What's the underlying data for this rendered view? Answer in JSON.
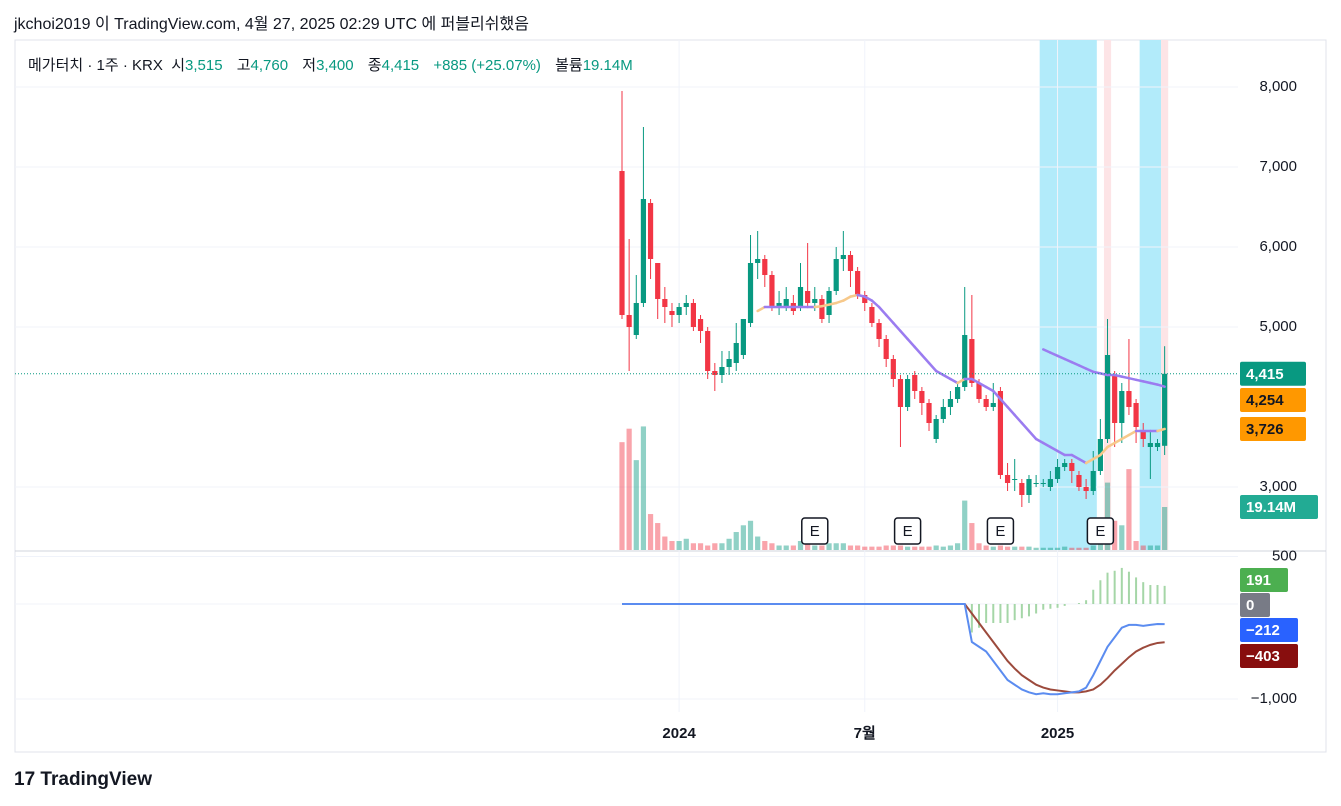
{
  "header": "jkchoi2019 이 TradingView.com, 4월 27, 2025 02:29 UTC 에 퍼블리쉬했음",
  "legend": {
    "symbol": "메가터치 · 1주 · KRX",
    "open_label": "시",
    "open": "3,515",
    "high_label": "고",
    "high": "4,760",
    "low_label": "저",
    "low": "3,400",
    "close_label": "종",
    "close": "4,415",
    "change": "+885 (+25.07%)",
    "volume_label": "볼륨",
    "volume": "19.14M"
  },
  "logo": "TradingView",
  "chart_data": {
    "type": "candlestick",
    "up_color": "#089981",
    "down_color": "#f23645",
    "open": [
      6950,
      5150,
      4900,
      5300,
      6550,
      5800,
      5350,
      5200,
      5150,
      5250,
      5300,
      5100,
      4950,
      4450,
      4400,
      4500,
      4550,
      4650,
      5050,
      5800,
      5850,
      5650,
      5250,
      5250,
      5300,
      5250,
      5450,
      5300,
      5350,
      5150,
      5450,
      5850,
      5900,
      5700,
      5400,
      5250,
      5050,
      4850,
      4600,
      4350,
      4000,
      4400,
      4200,
      4050,
      3600,
      3850,
      4000,
      4100,
      4250,
      4850,
      4300,
      4100,
      4000,
      4200,
      3150,
      3100,
      3050,
      2900,
      3050,
      3050,
      3000,
      3100,
      3250,
      3300,
      3150,
      3000,
      2950,
      3200,
      3600,
      4400,
      3800,
      4200,
      4050,
      3700,
      3500,
      3500,
      3515
    ],
    "high": [
      7950,
      6100,
      5650,
      7500,
      6600,
      5800,
      5500,
      5300,
      5300,
      5400,
      5350,
      5150,
      5000,
      4550,
      4700,
      4700,
      5050,
      5100,
      6150,
      6200,
      5900,
      5700,
      5450,
      5500,
      5400,
      5800,
      6050,
      5500,
      5400,
      5500,
      6000,
      6200,
      5950,
      5750,
      5450,
      5300,
      5100,
      4900,
      4650,
      4400,
      4400,
      4450,
      4250,
      4100,
      3900,
      4100,
      4200,
      4300,
      5500,
      5400,
      4350,
      4150,
      4300,
      4250,
      3300,
      3350,
      3100,
      3150,
      3150,
      3100,
      3200,
      3350,
      3350,
      3350,
      3200,
      3100,
      3450,
      3850,
      5100,
      4450,
      4300,
      4850,
      4100,
      3800,
      3700,
      3600,
      4760
    ],
    "low": [
      5100,
      4450,
      4850,
      5250,
      5600,
      5100,
      5050,
      5000,
      5050,
      5150,
      4950,
      4800,
      4350,
      4200,
      4300,
      4400,
      4450,
      4600,
      5000,
      5600,
      5500,
      5200,
      5150,
      5200,
      5150,
      5200,
      5250,
      5200,
      5050,
      5050,
      5400,
      5700,
      5500,
      5350,
      5200,
      5000,
      4750,
      4500,
      4250,
      3500,
      3950,
      4100,
      3900,
      3700,
      3550,
      3800,
      3900,
      4050,
      4200,
      4250,
      4050,
      3950,
      3950,
      3100,
      2950,
      2950,
      2750,
      2800,
      3000,
      3000,
      2950,
      3050,
      3200,
      3050,
      2950,
      2850,
      2900,
      3150,
      3550,
      3500,
      3550,
      3900,
      3550,
      3500,
      3100,
      3450,
      3400
    ],
    "close": [
      5150,
      5000,
      5300,
      6600,
      5850,
      5350,
      5250,
      5150,
      5250,
      5300,
      5000,
      4950,
      4450,
      4400,
      4500,
      4600,
      4800,
      5100,
      5800,
      5850,
      5650,
      5250,
      5300,
      5350,
      5200,
      5500,
      5300,
      5350,
      5100,
      5450,
      5850,
      5900,
      5700,
      5400,
      5300,
      5050,
      4850,
      4600,
      4350,
      4000,
      4350,
      4200,
      4050,
      3800,
      3850,
      4000,
      4100,
      4250,
      4900,
      4300,
      4100,
      4000,
      4050,
      3150,
      3050,
      3100,
      2900,
      3100,
      3050,
      3050,
      3100,
      3250,
      3300,
      3200,
      3000,
      2950,
      3200,
      3600,
      4650,
      3800,
      4200,
      4000,
      3750,
      3600,
      3550,
      3550,
      4415
    ],
    "volume": [
      48,
      54,
      40,
      55,
      16,
      12,
      6,
      4,
      4,
      5,
      3,
      3,
      2,
      3,
      3,
      5,
      8,
      11,
      13,
      6,
      4,
      3,
      2,
      2,
      2,
      4,
      3,
      2,
      2,
      3,
      3,
      3,
      2,
      2,
      1.5,
      1.5,
      1.5,
      2,
      2,
      2,
      1.5,
      1.5,
      1.5,
      1.5,
      2,
      1.5,
      2,
      3,
      22,
      12,
      3,
      2,
      1.5,
      2,
      1.5,
      1.5,
      1.5,
      1.5,
      1,
      1,
      1,
      1,
      1.5,
      1,
      1,
      1,
      2,
      8,
      30,
      13,
      11,
      36,
      4,
      2,
      2,
      2,
      19.14
    ],
    "volume_ylim": [
      0,
      227
    ],
    "ylim": [
      2212.5,
      8587.5
    ],
    "yticks": [
      {
        "value": 8000,
        "label": "8,000"
      },
      {
        "value": 7000,
        "label": "7,000"
      },
      {
        "value": 6000,
        "label": "6,000"
      },
      {
        "value": 5000,
        "label": "5,000"
      },
      {
        "value": 3000,
        "label": "3,000"
      }
    ],
    "xticks": [
      {
        "value": 8,
        "label": "2024"
      },
      {
        "value": 34,
        "label": "7월"
      },
      {
        "value": 61,
        "label": "2025"
      }
    ],
    "last_price": 4415,
    "last_price_label": "4,415",
    "last_volume_label": "19.14M",
    "moving_averages": [
      {
        "color": "#9b7cf0",
        "rising_color": "#f7c98b",
        "last_label": "3,726",
        "values": [
          null,
          null,
          null,
          null,
          null,
          null,
          null,
          null,
          null,
          null,
          null,
          null,
          null,
          null,
          null,
          null,
          null,
          null,
          null,
          5200,
          5250,
          5250,
          5250,
          5250,
          5250,
          5250,
          5250,
          5250,
          5260,
          5280,
          5300,
          5330,
          5380,
          5400,
          5380,
          5330,
          5250,
          5150,
          5050,
          4950,
          4850,
          4750,
          4650,
          4550,
          4450,
          4400,
          4350,
          4300,
          4350,
          4350,
          4300,
          4250,
          4200,
          4100,
          4000,
          3900,
          3800,
          3700,
          3600,
          3550,
          3500,
          3450,
          3400,
          3400,
          3350,
          3300,
          3350,
          3400,
          3500,
          3550,
          3600,
          3650,
          3700,
          3700,
          3700,
          3700,
          3726
        ]
      },
      {
        "color": "#9b7cf0",
        "rising_color": "#9b7cf0",
        "last_label": "4,254",
        "values": [
          null,
          null,
          null,
          null,
          null,
          null,
          null,
          null,
          null,
          null,
          null,
          null,
          null,
          null,
          null,
          null,
          null,
          null,
          null,
          null,
          null,
          null,
          null,
          null,
          null,
          null,
          null,
          null,
          null,
          null,
          null,
          null,
          null,
          null,
          null,
          null,
          null,
          null,
          null,
          null,
          null,
          null,
          null,
          null,
          null,
          null,
          null,
          null,
          null,
          null,
          null,
          null,
          null,
          null,
          null,
          null,
          null,
          null,
          null,
          4720,
          4680,
          4640,
          4600,
          4560,
          4520,
          4480,
          4440,
          4420,
          4400,
          4400,
          4380,
          4360,
          4340,
          4320,
          4300,
          4280,
          4254
        ]
      }
    ],
    "highlights": [
      {
        "from": 59,
        "to": 66,
        "color": "#b2ebfa"
      },
      {
        "from": 68,
        "to": 68,
        "color": "#fde4e6"
      },
      {
        "from": 73,
        "to": 75,
        "color": "#b2ebfa"
      },
      {
        "from": 76,
        "to": 76,
        "color": "#fde4e6"
      }
    ],
    "events": [
      {
        "index": 27,
        "label": "E"
      },
      {
        "index": 40,
        "label": "E"
      },
      {
        "index": 53,
        "label": "E"
      },
      {
        "index": 67,
        "label": "E"
      }
    ],
    "macd": {
      "ylim": [
        -1137,
        537
      ],
      "yticks": [
        500,
        {
          "value": -1000,
          "label": "−1,000"
        }
      ],
      "histogram_color": "#a5d6a7",
      "histogram_neg_color": "#a5d6a7",
      "histogram": [
        null,
        null,
        null,
        null,
        null,
        null,
        null,
        null,
        null,
        null,
        null,
        null,
        null,
        null,
        null,
        null,
        null,
        null,
        null,
        null,
        null,
        null,
        null,
        null,
        null,
        null,
        null,
        null,
        null,
        null,
        null,
        null,
        null,
        null,
        null,
        null,
        null,
        null,
        null,
        null,
        null,
        null,
        null,
        null,
        null,
        null,
        null,
        null,
        null,
        -300,
        -250,
        -200,
        -200,
        -200,
        -200,
        -170,
        -150,
        -130,
        -100,
        -60,
        -50,
        -40,
        -20,
        0,
        10,
        40,
        150,
        250,
        330,
        350,
        380,
        340,
        280,
        230,
        200,
        200,
        191
      ],
      "histogram_label": "191",
      "zero": 0,
      "macd_color": "#5b8cf0",
      "macd_label": "−212",
      "macd": [
        0,
        0,
        0,
        0,
        0,
        0,
        0,
        0,
        0,
        0,
        0,
        0,
        0,
        0,
        0,
        0,
        0,
        0,
        0,
        0,
        0,
        0,
        0,
        0,
        0,
        0,
        0,
        0,
        0,
        0,
        0,
        0,
        0,
        0,
        0,
        0,
        0,
        0,
        0,
        0,
        0,
        0,
        0,
        0,
        0,
        0,
        0,
        0,
        0,
        -400,
        -450,
        -500,
        -600,
        -700,
        -800,
        -850,
        -900,
        -930,
        -950,
        -940,
        -950,
        -950,
        -940,
        -930,
        -920,
        -880,
        -750,
        -600,
        -450,
        -350,
        -250,
        -220,
        -220,
        -230,
        -220,
        -210,
        -212
      ],
      "signal_color": "#9c4a3c",
      "signal_label": "−403",
      "signal": [
        null,
        null,
        null,
        null,
        null,
        null,
        null,
        null,
        0,
        0,
        0,
        0,
        0,
        0,
        0,
        0,
        0,
        0,
        0,
        0,
        0,
        0,
        0,
        0,
        0,
        0,
        0,
        0,
        0,
        0,
        0,
        0,
        0,
        0,
        0,
        0,
        0,
        0,
        0,
        0,
        0,
        0,
        0,
        0,
        0,
        0,
        0,
        0,
        0,
        -100,
        -200,
        -300,
        -400,
        -500,
        -600,
        -680,
        -750,
        -800,
        -850,
        -880,
        -900,
        -910,
        -920,
        -930,
        -930,
        -920,
        -900,
        -850,
        -780,
        -700,
        -630,
        -560,
        -500,
        -460,
        -430,
        -410,
        -403
      ]
    }
  }
}
